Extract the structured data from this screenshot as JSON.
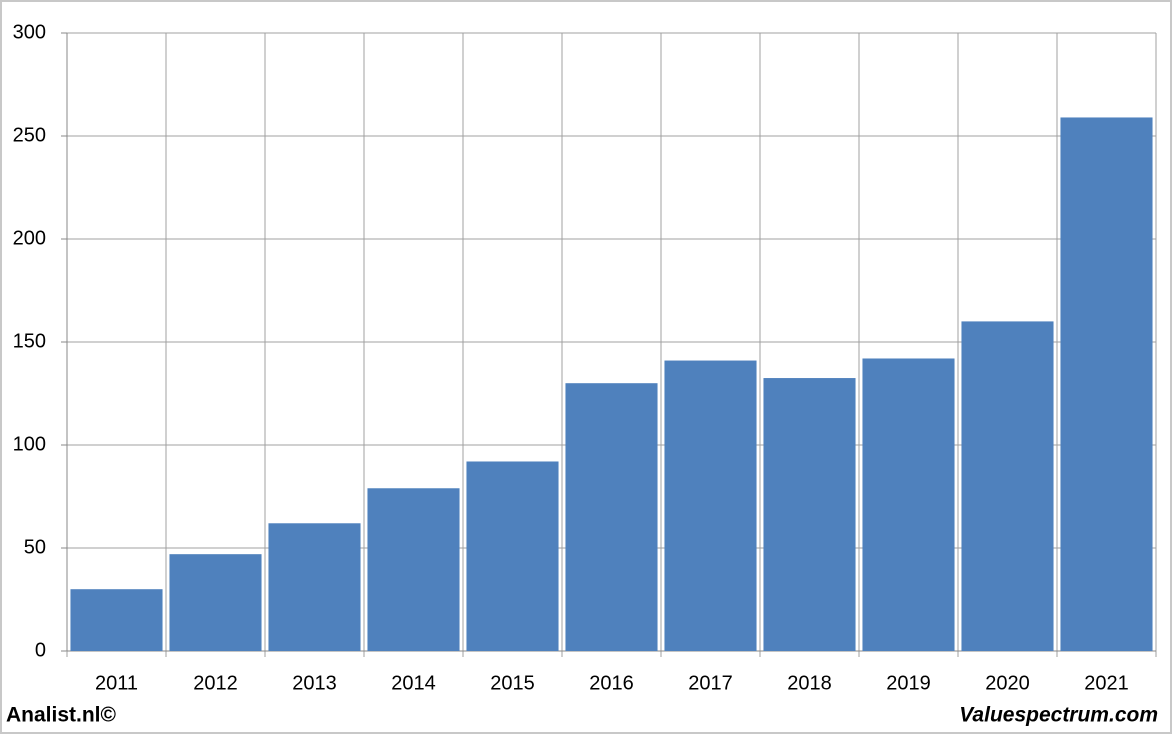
{
  "chart_data": {
    "type": "bar",
    "categories": [
      "2011",
      "2012",
      "2013",
      "2014",
      "2015",
      "2016",
      "2017",
      "2018",
      "2019",
      "2020",
      "2021"
    ],
    "values": [
      30,
      47,
      62,
      79,
      92,
      130,
      141,
      132.5,
      142,
      160,
      259
    ],
    "color": "#4f81bd",
    "ylim": [
      0,
      300
    ],
    "yticks": [
      0,
      50,
      100,
      150,
      200,
      250,
      300
    ],
    "grid": true,
    "footer_left": "Analist.nl©",
    "footer_right": "Valuespectrum.com"
  }
}
